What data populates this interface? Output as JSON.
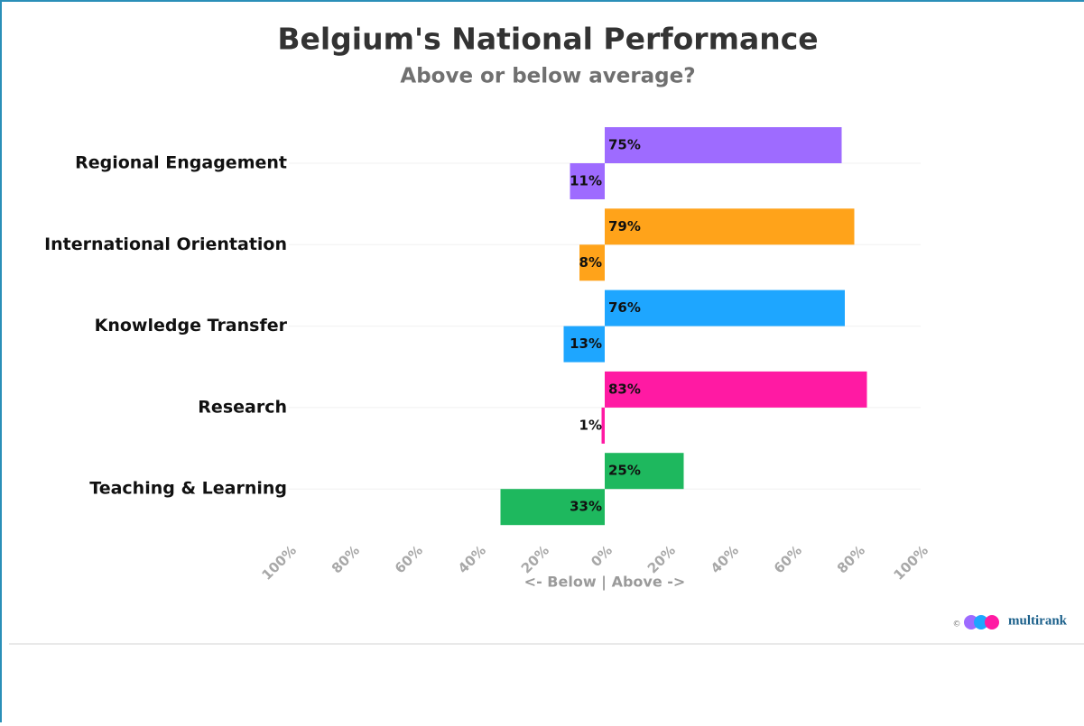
{
  "chart_data": {
    "type": "diverging_bar",
    "title": "Belgium's National Performance",
    "subtitle": "Above or below average?",
    "x_label": "<- Below | Above ->",
    "categories": [
      "Regional Engagement",
      "International Orientation",
      "Knowledge Transfer",
      "Research",
      "Teaching & Learning"
    ],
    "colors": [
      "#9e6bff",
      "#ffa31a",
      "#1ea6ff",
      "#ff1aa3",
      "#1eb85e"
    ],
    "series": [
      {
        "values": [
          75,
          79,
          76,
          83,
          25
        ],
        "value_labels": [
          "75%",
          "79%",
          "76%",
          "83%",
          "25%"
        ]
      },
      {
        "values": [
          -11,
          -8,
          -13,
          -1,
          -33
        ],
        "value_labels": [
          "11%",
          "8%",
          "13%",
          "1%",
          "33%"
        ]
      }
    ],
    "xlim": [
      -100,
      100
    ],
    "xticks": [
      {
        "value": -100,
        "label": "100%"
      },
      {
        "value": -80,
        "label": "80%"
      },
      {
        "value": -60,
        "label": "60%"
      },
      {
        "value": -40,
        "label": "40%"
      },
      {
        "value": -20,
        "label": "20%"
      },
      {
        "value": 0,
        "label": "0%"
      },
      {
        "value": 20,
        "label": "20%"
      },
      {
        "value": 40,
        "label": "40%"
      },
      {
        "value": 60,
        "label": "60%"
      },
      {
        "value": 80,
        "label": "80%"
      },
      {
        "value": 100,
        "label": "100%"
      }
    ],
    "copyright": "©",
    "logo": "multirank"
  }
}
